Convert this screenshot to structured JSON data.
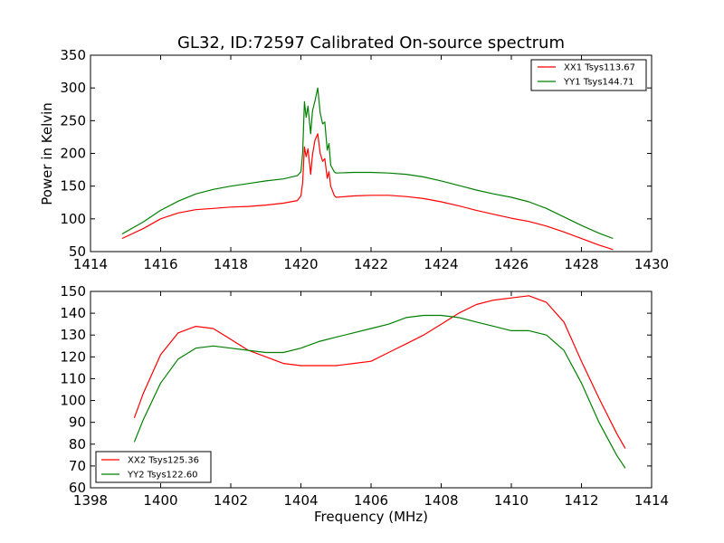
{
  "chart_data": [
    {
      "type": "line",
      "title": "GL32, ID:72597 Calibrated On-source spectrum",
      "xlabel": "",
      "ylabel": "Power in Kelvin",
      "xlim": [
        1414,
        1430
      ],
      "ylim": [
        50,
        350
      ],
      "xticks": [
        1414,
        1416,
        1418,
        1420,
        1422,
        1424,
        1426,
        1428,
        1430
      ],
      "yticks": [
        50,
        100,
        150,
        200,
        250,
        300,
        350
      ],
      "grid": false,
      "legend_position": "top-right",
      "series": [
        {
          "name": "XX1 Tsys113.67",
          "color": "#ff0000",
          "x": [
            1414.9,
            1415.5,
            1416.0,
            1416.5,
            1417.0,
            1417.5,
            1418.0,
            1418.5,
            1419.0,
            1419.5,
            1419.9,
            1420.0,
            1420.05,
            1420.1,
            1420.15,
            1420.2,
            1420.28,
            1420.33,
            1420.4,
            1420.48,
            1420.55,
            1420.62,
            1420.68,
            1420.75,
            1420.8,
            1420.85,
            1420.95,
            1421.0,
            1421.5,
            1422.0,
            1422.5,
            1423.0,
            1423.5,
            1424.0,
            1424.5,
            1425.0,
            1425.5,
            1426.0,
            1426.5,
            1427.0,
            1427.5,
            1428.0,
            1428.5,
            1428.9
          ],
          "y": [
            70,
            85,
            100,
            109,
            114,
            116,
            118,
            119,
            121,
            124,
            128,
            135,
            155,
            210,
            195,
            207,
            168,
            198,
            220,
            230,
            200,
            188,
            192,
            162,
            172,
            150,
            136,
            133,
            135,
            136,
            136,
            134,
            131,
            126,
            120,
            113,
            107,
            101,
            96,
            89,
            80,
            70,
            60,
            53
          ]
        },
        {
          "name": "YY1 Tsys144.71",
          "color": "#008000",
          "x": [
            1414.9,
            1415.5,
            1416.0,
            1416.5,
            1417.0,
            1417.5,
            1418.0,
            1418.5,
            1419.0,
            1419.5,
            1419.9,
            1420.0,
            1420.05,
            1420.1,
            1420.15,
            1420.2,
            1420.28,
            1420.33,
            1420.4,
            1420.48,
            1420.55,
            1420.62,
            1420.68,
            1420.75,
            1420.8,
            1420.85,
            1420.95,
            1421.0,
            1421.5,
            1422.0,
            1422.5,
            1423.0,
            1423.5,
            1424.0,
            1424.5,
            1425.0,
            1425.5,
            1426.0,
            1426.5,
            1427.0,
            1427.5,
            1428.0,
            1428.5,
            1428.9
          ],
          "y": [
            77,
            95,
            113,
            127,
            138,
            145,
            150,
            154,
            158,
            161,
            166,
            172,
            200,
            279,
            255,
            272,
            230,
            265,
            280,
            300,
            262,
            245,
            248,
            205,
            215,
            182,
            172,
            170,
            171,
            171,
            170,
            168,
            164,
            158,
            151,
            144,
            138,
            133,
            126,
            116,
            103,
            90,
            78,
            70
          ]
        }
      ]
    },
    {
      "type": "line",
      "title": "",
      "xlabel": "Frequency (MHz)",
      "ylabel": "",
      "xlim": [
        1398,
        1414
      ],
      "ylim": [
        60,
        150
      ],
      "xticks": [
        1398,
        1400,
        1402,
        1404,
        1406,
        1408,
        1410,
        1412,
        1414
      ],
      "yticks": [
        60,
        70,
        80,
        90,
        100,
        110,
        120,
        130,
        140,
        150
      ],
      "grid": false,
      "legend_position": "bottom-left",
      "series": [
        {
          "name": "XX2 Tsys125.36",
          "color": "#ff0000",
          "x": [
            1399.25,
            1399.5,
            1400.0,
            1400.5,
            1401.0,
            1401.5,
            1402.0,
            1402.5,
            1403.0,
            1403.5,
            1404.0,
            1404.5,
            1405.0,
            1405.5,
            1406.0,
            1406.5,
            1407.0,
            1407.5,
            1408.0,
            1408.5,
            1409.0,
            1409.5,
            1410.0,
            1410.5,
            1411.0,
            1411.5,
            1412.0,
            1412.5,
            1413.0,
            1413.25
          ],
          "y": [
            92,
            103,
            121,
            131,
            134,
            133,
            128,
            123,
            120,
            117,
            116,
            116,
            116,
            117,
            118,
            122,
            126,
            130,
            135,
            140,
            144,
            146,
            147,
            148,
            145,
            136,
            118,
            101,
            85,
            78
          ]
        },
        {
          "name": "YY2 Tsys122.60",
          "color": "#008000",
          "x": [
            1399.25,
            1399.5,
            1400.0,
            1400.5,
            1401.0,
            1401.5,
            1402.0,
            1402.5,
            1403.0,
            1403.5,
            1404.0,
            1404.5,
            1405.0,
            1405.5,
            1406.0,
            1406.5,
            1407.0,
            1407.5,
            1408.0,
            1408.5,
            1409.0,
            1409.5,
            1410.0,
            1410.5,
            1411.0,
            1411.5,
            1412.0,
            1412.5,
            1413.0,
            1413.25
          ],
          "y": [
            81,
            91,
            108,
            119,
            124,
            125,
            124,
            123,
            122,
            122,
            124,
            127,
            129,
            131,
            133,
            135,
            138,
            139,
            139,
            138,
            136,
            134,
            132,
            132,
            130,
            123,
            108,
            90,
            75,
            69
          ]
        }
      ]
    }
  ]
}
